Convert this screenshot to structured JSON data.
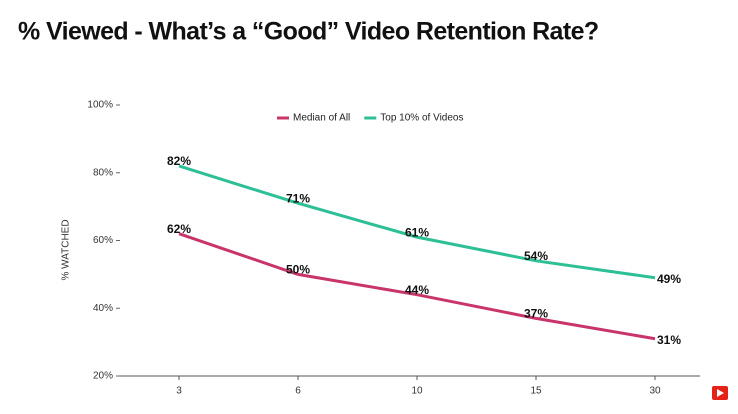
{
  "chart_data": {
    "type": "line",
    "title": "% Viewed - What’s a “Good” Video Retention Rate?",
    "y_label": "% WATCHED",
    "categories": [
      "3",
      "6",
      "10",
      "15",
      "30"
    ],
    "series": [
      {
        "name": "Median of All",
        "color": "#c9356b",
        "values": [
          62,
          50,
          44,
          37,
          31
        ],
        "value_labels": [
          "62%",
          "50%",
          "44%",
          "37%",
          "31%"
        ]
      },
      {
        "name": "Top 10% of Videos",
        "color": "#2dbf96",
        "values": [
          82,
          71,
          61,
          54,
          49
        ],
        "value_labels": [
          "82%",
          "71%",
          "61%",
          "54%",
          "49%"
        ]
      }
    ],
    "ylim": [
      20,
      100
    ],
    "yticks": [
      {
        "value": 20,
        "label": "20%"
      },
      {
        "value": 40,
        "label": "40%"
      },
      {
        "value": 60,
        "label": "60%"
      },
      {
        "value": 80,
        "label": "80%"
      },
      {
        "value": 100,
        "label": "100%"
      }
    ],
    "legend": "top"
  }
}
